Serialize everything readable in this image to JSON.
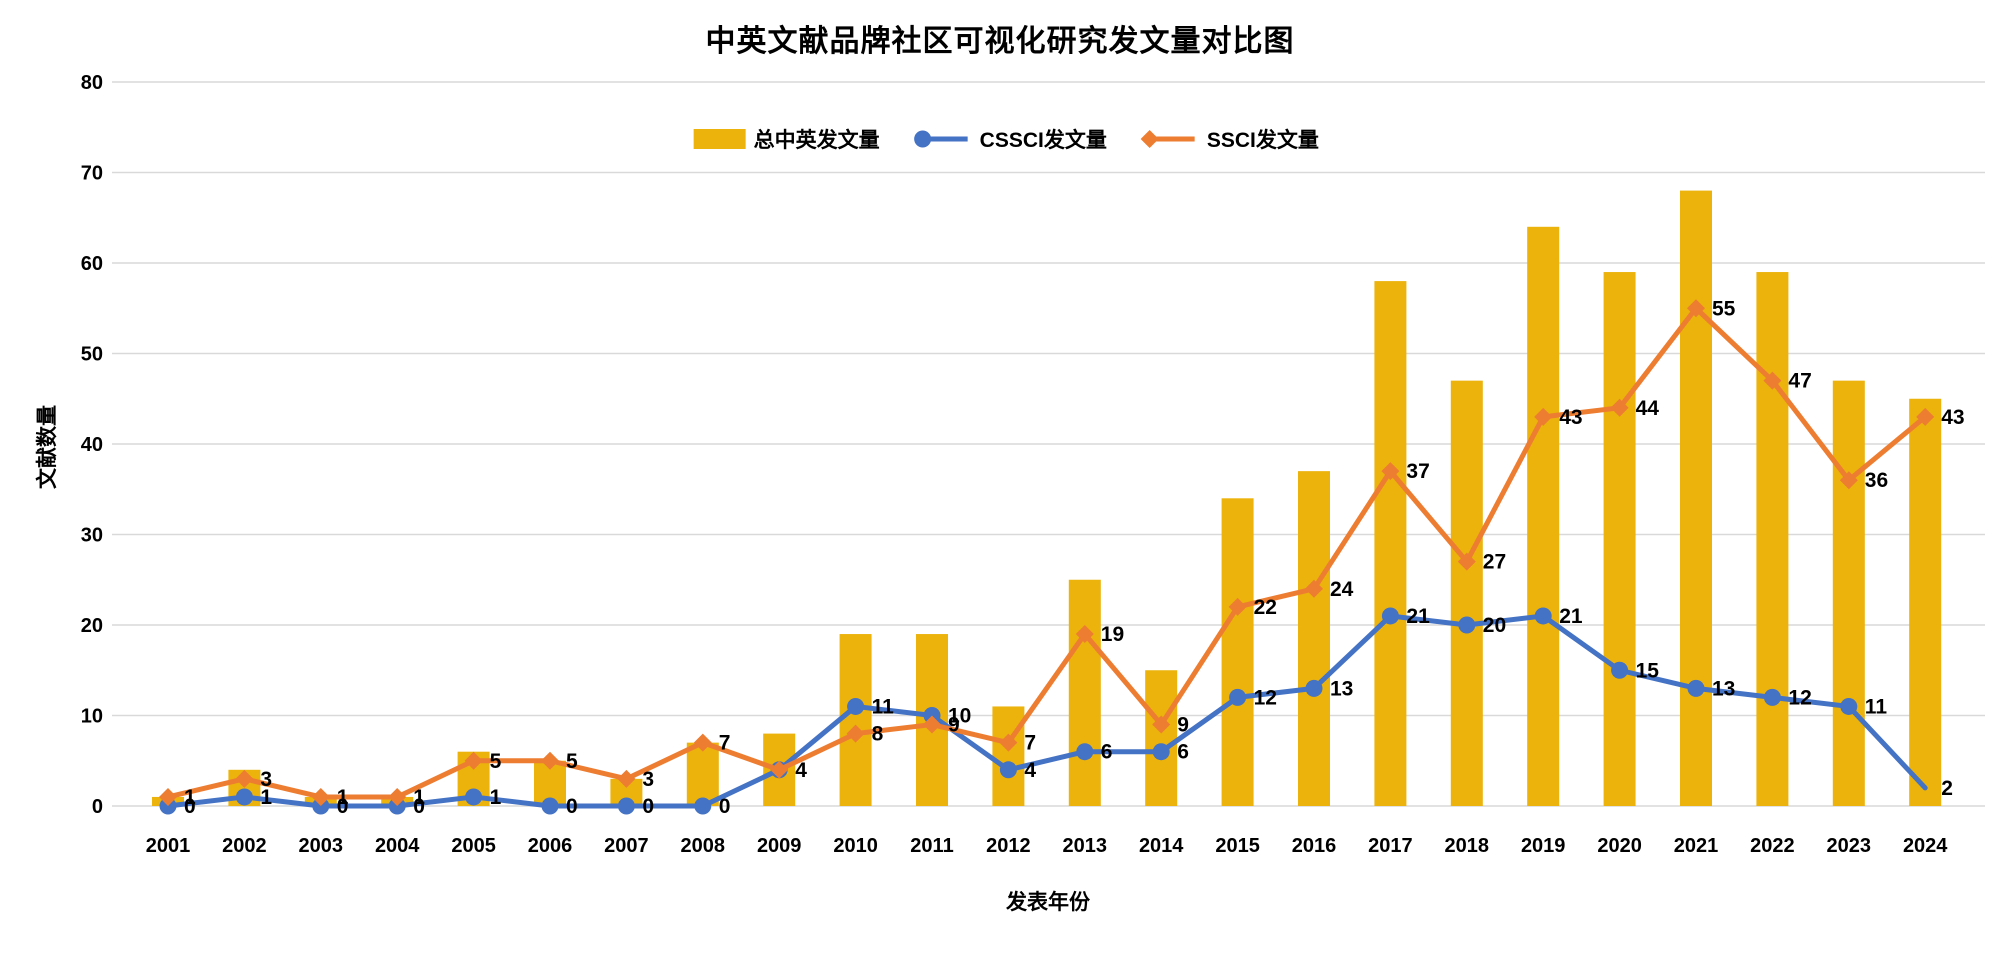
{
  "title": "中英文献品牌社区可视化研究发文量对比图",
  "chart_data": {
    "type": "bar",
    "subtype": "combo-bar-line",
    "categories": [
      "2001",
      "2002",
      "2003",
      "2004",
      "2005",
      "2006",
      "2007",
      "2008",
      "2009",
      "2010",
      "2011",
      "2012",
      "2013",
      "2014",
      "2015",
      "2016",
      "2017",
      "2018",
      "2019",
      "2020",
      "2021",
      "2022",
      "2023",
      "2024"
    ],
    "series": [
      {
        "name": "总中英发文量",
        "type": "bar",
        "color": "#ECB30C",
        "values": [
          1,
          4,
          1,
          1,
          6,
          5,
          3,
          7,
          8,
          19,
          19,
          11,
          25,
          15,
          34,
          37,
          58,
          47,
          64,
          59,
          68,
          59,
          47,
          45
        ]
      },
      {
        "name": "CSSCI发文量",
        "type": "line",
        "marker": "circle",
        "color": "#4472C4",
        "values": [
          0,
          1,
          0,
          0,
          1,
          0,
          0,
          0,
          4,
          11,
          10,
          4,
          6,
          6,
          12,
          13,
          21,
          20,
          21,
          15,
          13,
          12,
          11,
          2
        ],
        "data_labels": [
          "0",
          "1",
          "0",
          "0",
          "1",
          "0",
          "0",
          "0",
          "",
          "11",
          "10",
          "4",
          "6",
          "6",
          "12",
          "13",
          "21",
          "20",
          "21",
          "15",
          "13",
          "12",
          "11",
          "2"
        ],
        "hide_last_marker": true
      },
      {
        "name": "SSCI发文量",
        "type": "line",
        "marker": "diamond",
        "color": "#ED7D31",
        "values": [
          1,
          3,
          1,
          1,
          5,
          5,
          3,
          7,
          4,
          8,
          9,
          7,
          19,
          9,
          22,
          24,
          37,
          27,
          43,
          44,
          55,
          47,
          36,
          43
        ],
        "data_labels": [
          "1",
          "3",
          "1",
          "1",
          "5",
          "5",
          "3",
          "7",
          "4",
          "8",
          "9",
          "7",
          "19",
          "9",
          "22",
          "24",
          "37",
          "27",
          "43",
          "44",
          "55",
          "47",
          "36",
          "43"
        ]
      }
    ],
    "xlabel": "发表年份",
    "ylabel": "文献数量",
    "ylim": [
      0,
      80
    ],
    "ytick_step": 10,
    "yticks": [
      "0",
      "10",
      "20",
      "30",
      "40",
      "50",
      "60",
      "70",
      "80"
    ],
    "grid": true,
    "gridline_color": "#D9D9D9",
    "label_color": "#000000",
    "legend_position": "top-inside"
  }
}
